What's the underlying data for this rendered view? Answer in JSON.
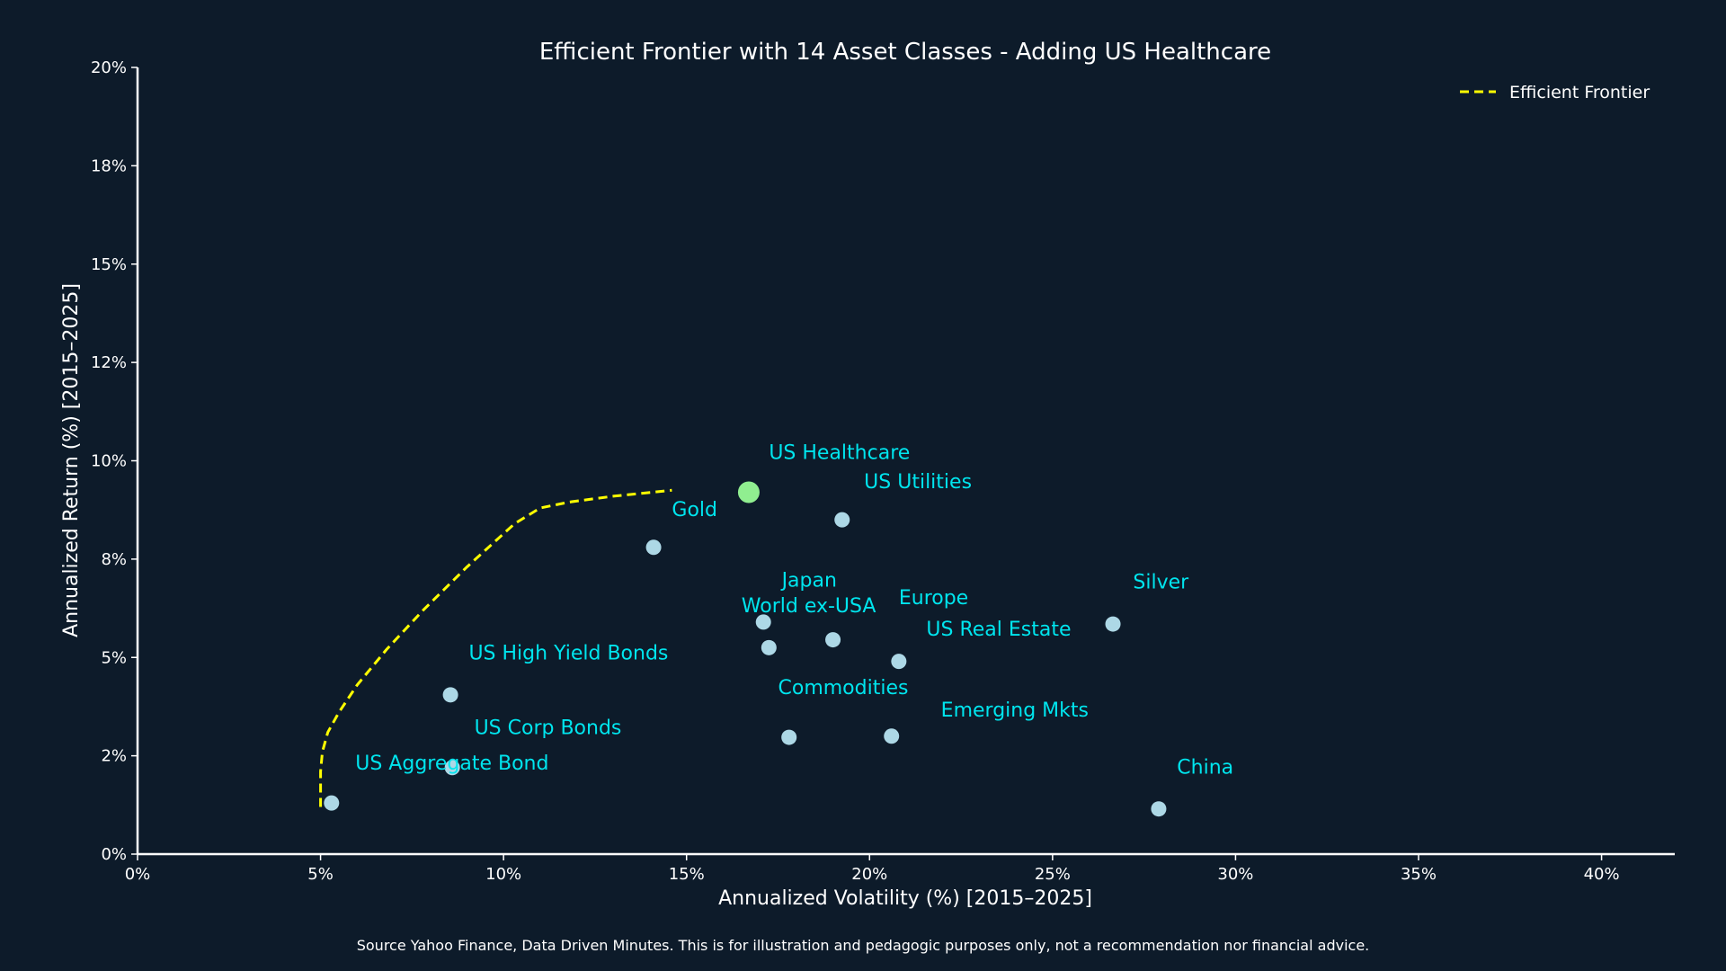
{
  "chart_data": {
    "type": "scatter",
    "title": "Efficient Frontier with 14 Asset Classes - Adding US Healthcare",
    "xlabel": "Annualized Volatility (%) [2015–2025]",
    "ylabel": "Annualized Return (%) [2015–2025]",
    "xlim": [
      0,
      42
    ],
    "ylim": [
      0,
      20
    ],
    "x_ticks": [
      {
        "value": 0,
        "label": "0%"
      },
      {
        "value": 5,
        "label": "5%"
      },
      {
        "value": 10,
        "label": "10%"
      },
      {
        "value": 15,
        "label": "15%"
      },
      {
        "value": 20,
        "label": "20%"
      },
      {
        "value": 25,
        "label": "25%"
      },
      {
        "value": 30,
        "label": "30%"
      },
      {
        "value": 35,
        "label": "35%"
      },
      {
        "value": 40,
        "label": "40%"
      }
    ],
    "y_ticks": [
      {
        "value": 0,
        "label": "0%"
      },
      {
        "value": 2.5,
        "label": "2%"
      },
      {
        "value": 5,
        "label": "5%"
      },
      {
        "value": 7.5,
        "label": "8%"
      },
      {
        "value": 10,
        "label": "10%"
      },
      {
        "value": 12.5,
        "label": "12%"
      },
      {
        "value": 15,
        "label": "15%"
      },
      {
        "value": 17.5,
        "label": "18%"
      },
      {
        "value": 20,
        "label": "20%"
      }
    ],
    "grid": false,
    "legend_position": "top-right",
    "legend": [
      {
        "label": "Efficient Frontier",
        "color": "#ffff00",
        "style": "dashed"
      }
    ],
    "points": [
      {
        "label": "US Healthcare",
        "x": 16.7,
        "y": 9.2,
        "color": "#90ee90",
        "highlight": true,
        "dx": 0.55,
        "dy": 0.85
      },
      {
        "label": "US Utilities",
        "x": 19.25,
        "y": 8.5,
        "color": "#add8e6",
        "dx": 0.6,
        "dy": 0.8
      },
      {
        "label": "Gold",
        "x": 14.1,
        "y": 7.8,
        "color": "#add8e6",
        "dx": 0.5,
        "dy": 0.8
      },
      {
        "label": "Japan",
        "x": 17.1,
        "y": 5.9,
        "color": "#add8e6",
        "dx": 0.5,
        "dy": 0.9
      },
      {
        "label": "World ex-USA",
        "x": 17.25,
        "y": 5.25,
        "color": "#add8e6",
        "dx": -0.75,
        "dy": 0.9
      },
      {
        "label": "Europe",
        "x": 19.0,
        "y": 5.45,
        "color": "#add8e6",
        "dx": 1.8,
        "dy": 0.9
      },
      {
        "label": "US Real Estate",
        "x": 20.8,
        "y": 4.9,
        "color": "#add8e6",
        "dx": 0.75,
        "dy": 0.65
      },
      {
        "label": "Silver",
        "x": 26.65,
        "y": 5.85,
        "color": "#add8e6",
        "dx": 0.55,
        "dy": 0.9
      },
      {
        "label": "US High Yield Bonds",
        "x": 8.55,
        "y": 4.05,
        "color": "#add8e6",
        "dx": 0.5,
        "dy": 0.9
      },
      {
        "label": "Commodities",
        "x": 17.8,
        "y": 2.97,
        "color": "#add8e6",
        "dx": -0.3,
        "dy": 1.1
      },
      {
        "label": "Emerging Mkts",
        "x": 20.6,
        "y": 3.0,
        "color": "#add8e6",
        "dx": 1.35,
        "dy": 0.5
      },
      {
        "label": "US Corp Bonds",
        "x": 8.6,
        "y": 2.2,
        "color": "#add8e6",
        "dx": 0.6,
        "dy": 0.85
      },
      {
        "label": "US Aggregate Bond",
        "x": 5.3,
        "y": 1.3,
        "color": "#add8e6",
        "dx": 0.65,
        "dy": 0.85
      },
      {
        "label": "China",
        "x": 27.9,
        "y": 1.15,
        "color": "#add8e6",
        "dx": 0.5,
        "dy": 0.9
      }
    ],
    "label_color": "#00e5ee",
    "frontier": {
      "name": "Efficient Frontier",
      "color": "#ffff00",
      "x": [
        5.0,
        5.0,
        5.05,
        5.2,
        5.5,
        6.0,
        6.8,
        7.8,
        9.0,
        10.3,
        11.0,
        11.8,
        13.0,
        14.6
      ],
      "y": [
        1.2,
        2.1,
        2.6,
        3.1,
        3.6,
        4.3,
        5.2,
        6.2,
        7.3,
        8.4,
        8.8,
        8.95,
        9.1,
        9.25
      ]
    }
  },
  "footer": {
    "source": "Source Yahoo Finance, Data Driven Minutes. This is for illustration and pedagogic purposes only, not a recommendation nor financial advice."
  }
}
